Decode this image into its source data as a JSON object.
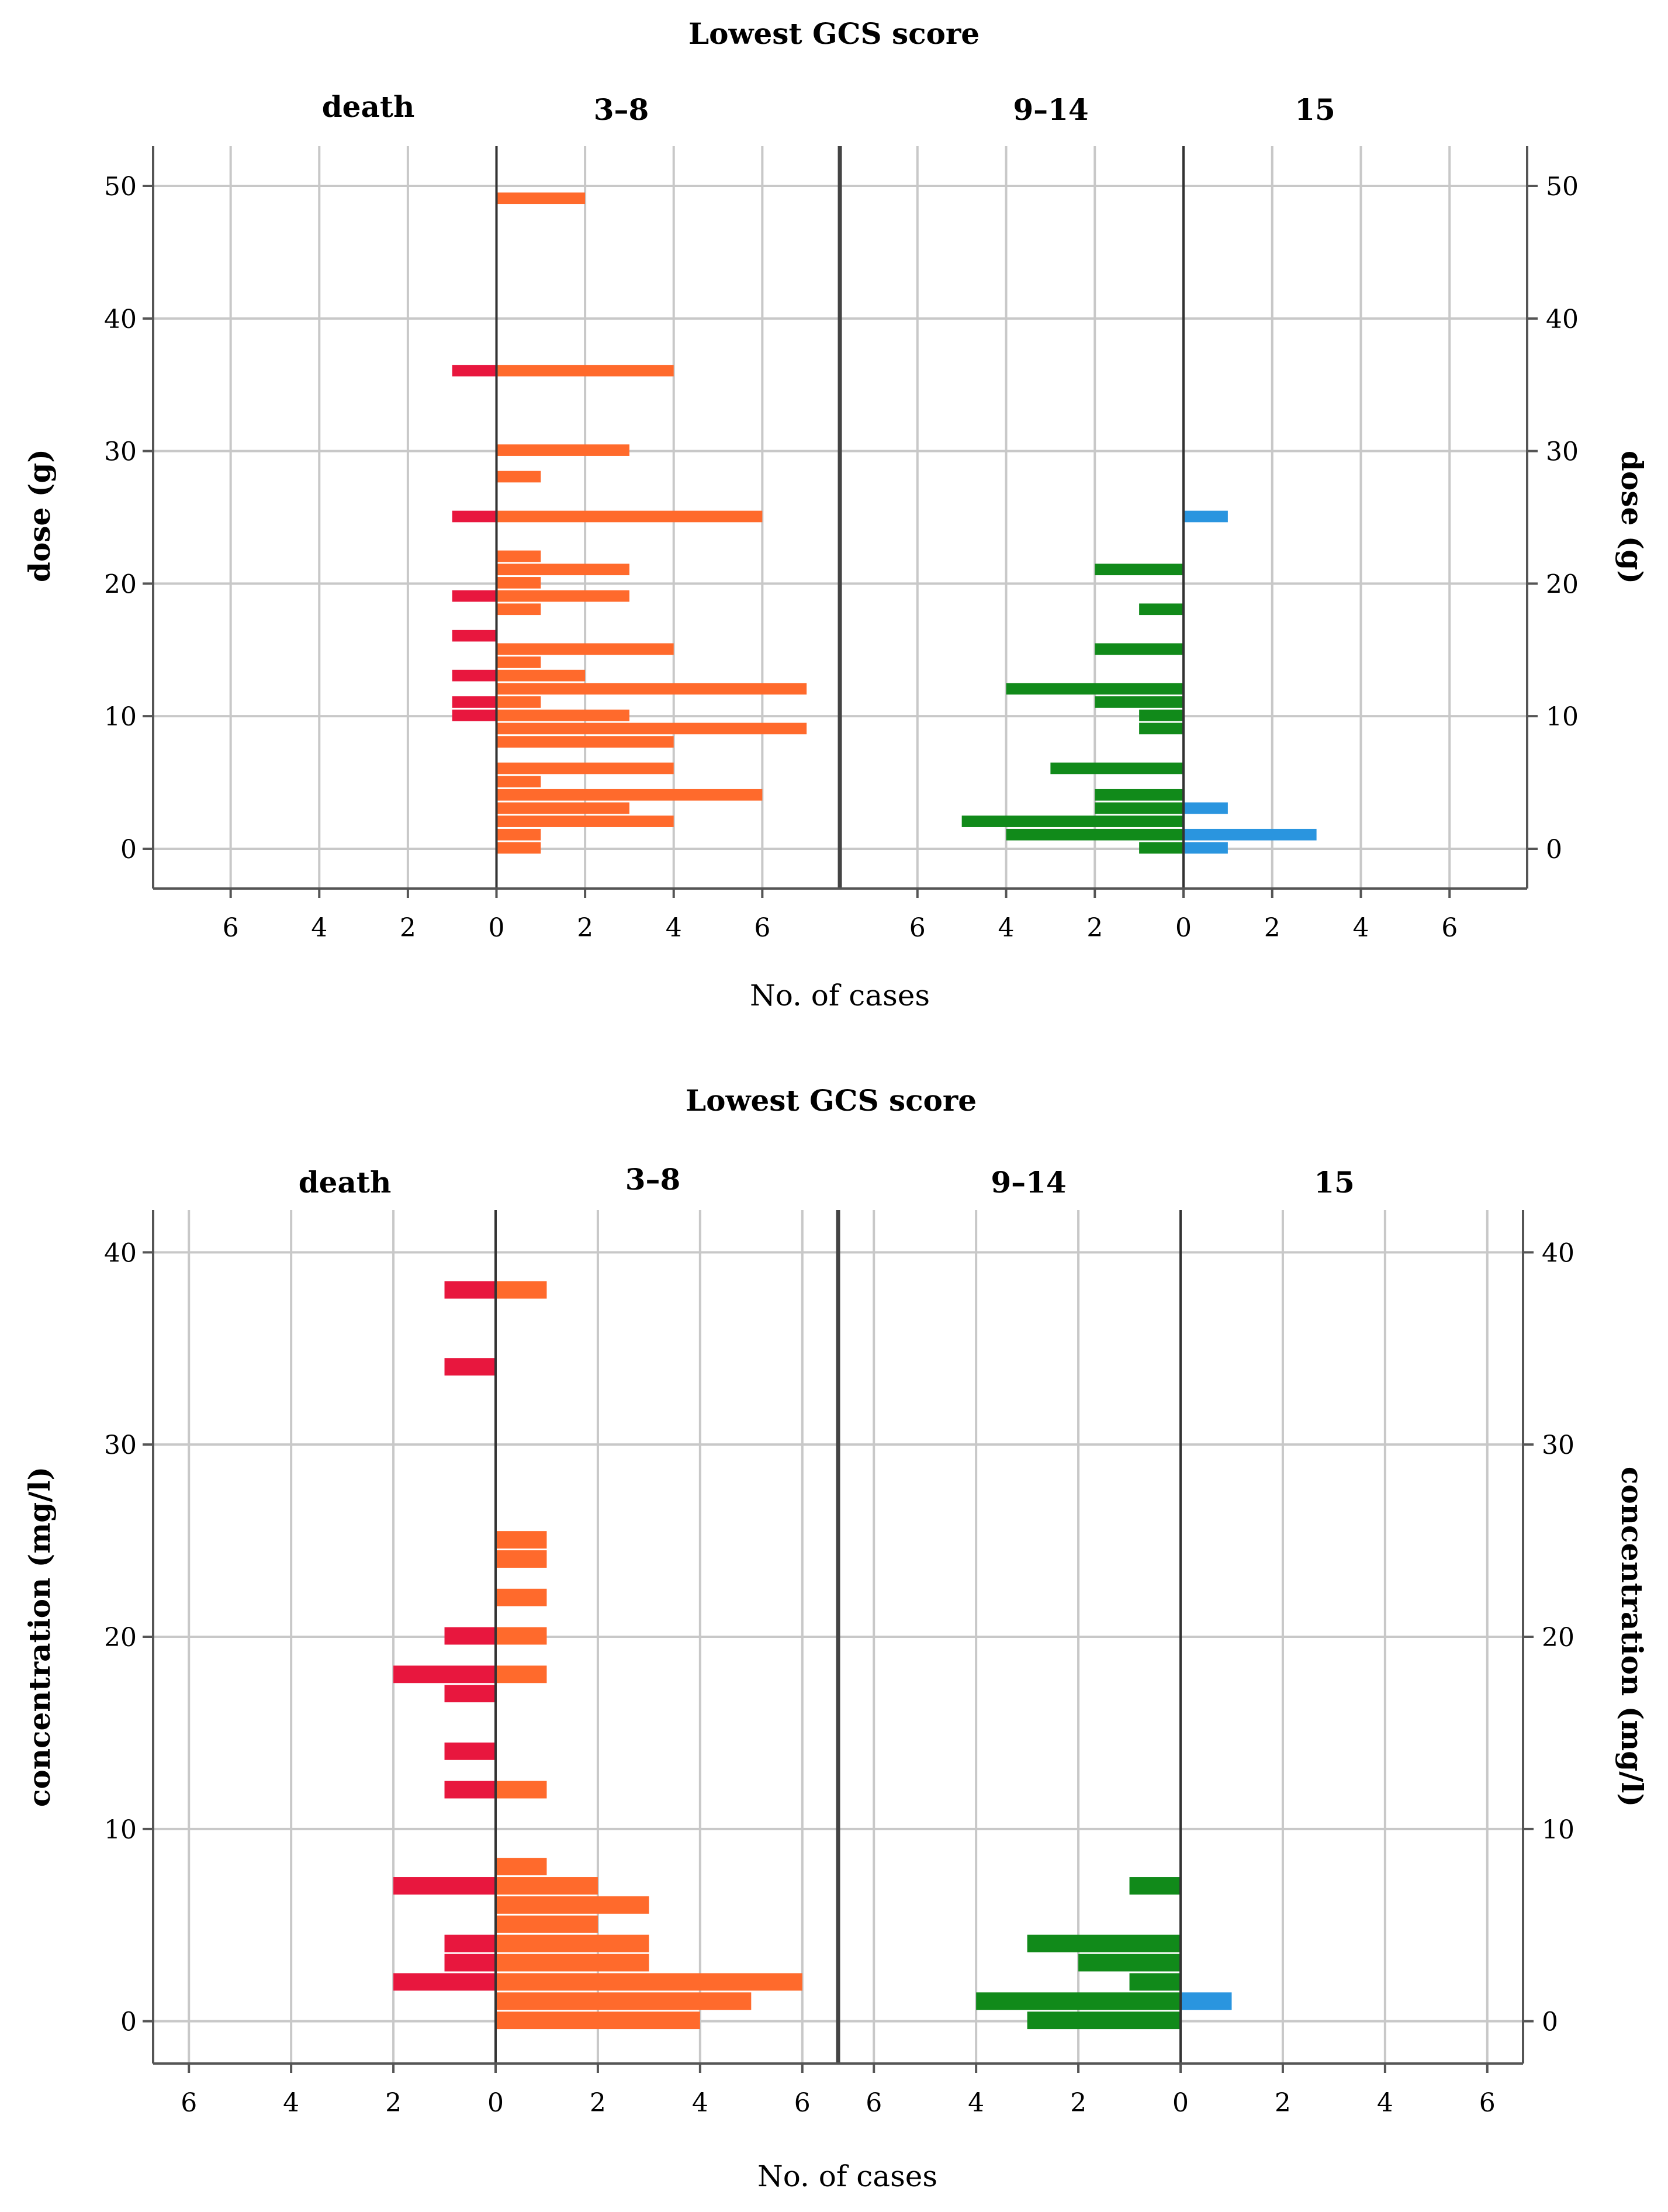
{
  "colors": {
    "death": "#e8173e",
    "gcs_3_8": "#ff6a2c",
    "gcs_9_14": "#118a1a",
    "gcs_15": "#2a95df",
    "grid": "#c8c8c8",
    "frame": "#555555",
    "divider": "#444444"
  },
  "chart_data": [
    {
      "type": "bar",
      "orientation": "horizontal",
      "title": "Lowest GCS score",
      "xlabel": "No. of cases",
      "ylabel": "dose (g)",
      "ylabel_right": "dose (g)",
      "ylim": [
        -3,
        53
      ],
      "y_ticks": [
        0,
        10,
        20,
        30,
        40,
        50
      ],
      "x_ticks_left": [
        6,
        4,
        2,
        0,
        2,
        4,
        6
      ],
      "x_ticks_right": [
        6,
        4,
        2,
        0,
        2,
        4,
        6
      ],
      "x_range_each_side": 7.75,
      "bin_width": 1,
      "left_panel": {
        "negative_label": "death",
        "positive_label": "3–8",
        "negative_series": "death",
        "positive_series": "3–8"
      },
      "right_panel": {
        "negative_label": "9–14",
        "positive_label": "15",
        "negative_series": "9–14",
        "positive_series": "15"
      },
      "series": [
        {
          "name": "death",
          "color_key": "death",
          "data": [
            [
              36,
              1
            ],
            [
              25,
              1
            ],
            [
              19,
              1
            ],
            [
              16,
              1
            ],
            [
              13,
              1
            ],
            [
              10,
              1
            ],
            [
              11,
              1
            ]
          ]
        },
        {
          "name": "3–8",
          "color_key": "gcs_3_8",
          "data": [
            [
              0,
              1
            ],
            [
              1,
              1
            ],
            [
              2,
              4
            ],
            [
              3,
              3
            ],
            [
              4,
              6
            ],
            [
              5,
              1
            ],
            [
              6,
              4
            ],
            [
              8,
              4
            ],
            [
              9,
              7
            ],
            [
              10,
              3
            ],
            [
              11,
              1
            ],
            [
              12,
              7
            ],
            [
              13,
              2
            ],
            [
              14,
              1
            ],
            [
              15,
              4
            ],
            [
              18,
              1
            ],
            [
              19,
              3
            ],
            [
              20,
              1
            ],
            [
              21,
              3
            ],
            [
              22,
              1
            ],
            [
              25,
              6
            ],
            [
              28,
              1
            ],
            [
              30,
              3
            ],
            [
              36,
              4
            ],
            [
              49,
              2
            ]
          ]
        },
        {
          "name": "9–14",
          "color_key": "gcs_9_14",
          "data": [
            [
              0,
              1
            ],
            [
              1,
              4
            ],
            [
              2,
              5
            ],
            [
              3,
              2
            ],
            [
              4,
              2
            ],
            [
              6,
              3
            ],
            [
              9,
              1
            ],
            [
              10,
              1
            ],
            [
              11,
              2
            ],
            [
              12,
              4
            ],
            [
              15,
              2
            ],
            [
              18,
              1
            ],
            [
              21,
              2
            ]
          ]
        },
        {
          "name": "15",
          "color_key": "gcs_15",
          "data": [
            [
              0,
              1
            ],
            [
              1,
              3
            ],
            [
              3,
              1
            ],
            [
              25,
              1
            ]
          ]
        }
      ]
    },
    {
      "type": "bar",
      "orientation": "horizontal",
      "title": "Lowest GCS score",
      "xlabel": "No. of cases",
      "ylabel": "concentration (mg/l)",
      "ylabel_right": "concentration (mg/l)",
      "ylim": [
        -2.2,
        42.2
      ],
      "y_ticks": [
        0,
        10,
        20,
        30,
        40
      ],
      "x_ticks_left": [
        6,
        4,
        2,
        0,
        2,
        4,
        6
      ],
      "x_ticks_right": [
        6,
        4,
        2,
        0,
        2,
        4,
        6
      ],
      "x_range_each_side": 6.7,
      "bin_width": 1,
      "left_panel": {
        "negative_label": "death",
        "positive_label": "3–8",
        "negative_series": "death",
        "positive_series": "3–8"
      },
      "right_panel": {
        "negative_label": "9–14",
        "positive_label": "15",
        "negative_series": "9–14",
        "positive_series": "15"
      },
      "series": [
        {
          "name": "death",
          "color_key": "death",
          "data": [
            [
              2,
              2
            ],
            [
              3,
              1
            ],
            [
              4,
              1
            ],
            [
              7,
              2
            ],
            [
              12,
              1
            ],
            [
              14,
              1
            ],
            [
              17,
              1
            ],
            [
              18,
              2
            ],
            [
              20,
              1
            ],
            [
              34,
              1
            ],
            [
              38,
              1
            ]
          ]
        },
        {
          "name": "3–8",
          "color_key": "gcs_3_8",
          "data": [
            [
              0,
              4
            ],
            [
              1,
              5
            ],
            [
              2,
              6
            ],
            [
              3,
              3
            ],
            [
              4,
              3
            ],
            [
              5,
              2
            ],
            [
              6,
              3
            ],
            [
              7,
              2
            ],
            [
              8,
              1
            ],
            [
              12,
              1
            ],
            [
              18,
              1
            ],
            [
              20,
              1
            ],
            [
              22,
              1
            ],
            [
              24,
              1
            ],
            [
              25,
              1
            ],
            [
              38,
              1
            ]
          ]
        },
        {
          "name": "9–14",
          "color_key": "gcs_9_14",
          "data": [
            [
              0,
              3
            ],
            [
              1,
              4
            ],
            [
              2,
              1
            ],
            [
              3,
              2
            ],
            [
              4,
              3
            ],
            [
              7,
              1
            ]
          ]
        },
        {
          "name": "15",
          "color_key": "gcs_15",
          "data": [
            [
              1,
              1
            ]
          ]
        }
      ]
    }
  ]
}
